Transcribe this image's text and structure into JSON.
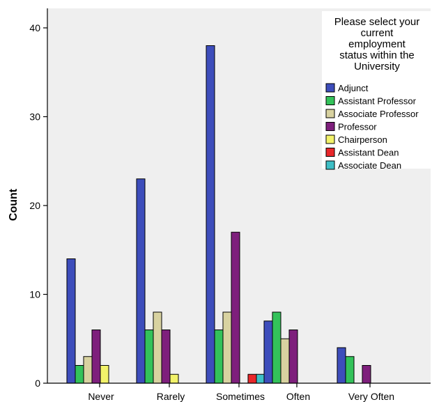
{
  "chart_data": {
    "type": "bar",
    "ylabel": "Count",
    "xlabel": "",
    "ylim": [
      0,
      42
    ],
    "yticks": [
      0,
      10,
      20,
      30,
      40
    ],
    "categories": [
      "Never",
      "Rarely",
      "Sometimes",
      "Often",
      "Very Often"
    ],
    "legend": {
      "title": [
        "Please select your",
        "current",
        "employment",
        "status within the",
        "University"
      ],
      "placement": "top-right"
    },
    "series": [
      {
        "name": "Adjunct",
        "color": "#3d4dbb",
        "values": [
          14,
          23,
          38,
          7,
          4
        ]
      },
      {
        "name": "Assistant Professor",
        "color": "#33c25a",
        "values": [
          2,
          6,
          6,
          8,
          3
        ]
      },
      {
        "name": "Associate Professor",
        "color": "#d8d2a0",
        "values": [
          3,
          8,
          8,
          5,
          0
        ]
      },
      {
        "name": "Professor",
        "color": "#7e1f7c",
        "values": [
          6,
          6,
          17,
          6,
          2
        ]
      },
      {
        "name": "Chairperson",
        "color": "#f2f26a",
        "values": [
          2,
          1,
          0,
          0,
          0
        ]
      },
      {
        "name": "Assistant Dean",
        "color": "#e8272a",
        "values": [
          0,
          0,
          1,
          0,
          0
        ]
      },
      {
        "name": "Associate Dean",
        "color": "#3fbfc6",
        "values": [
          0,
          0,
          1,
          0,
          0
        ]
      }
    ],
    "colors": {
      "plot_background": "#efefef",
      "legend_background": "#ffffff"
    }
  }
}
